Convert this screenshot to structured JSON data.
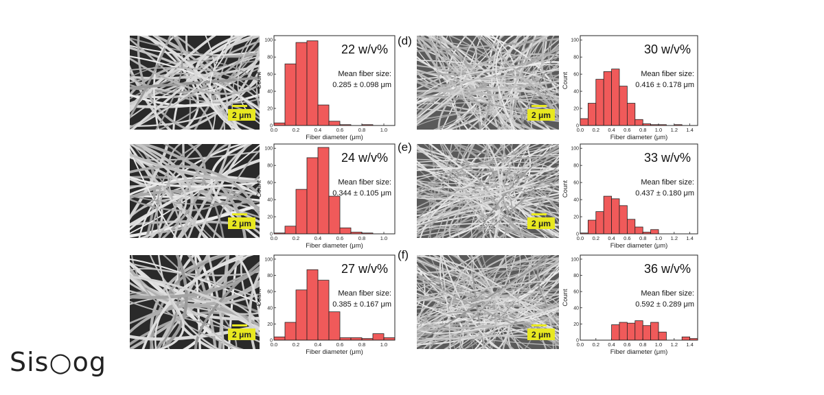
{
  "panel_letters": [
    "(d)",
    "(e)",
    "(f)"
  ],
  "scale_bar_label": "2 μm",
  "watermark": "Sis○og",
  "colors": {
    "bar_fill": "#f05a5a",
    "bar_stroke": "#222222",
    "scale_bar": "#e8e820"
  },
  "chart_data": [
    {
      "type": "bar",
      "title": "22 w/v%",
      "annotation_line1": "Mean fiber size:",
      "annotation_line2": "0.285 ± 0.098 μm",
      "xlabel": "Fiber diameter (μm)",
      "ylabel": "Count",
      "xlim": [
        0,
        1.1
      ],
      "ylim": [
        0,
        105
      ],
      "xticks": [
        "0.0",
        "0.2",
        "0.4",
        "0.6",
        "0.8",
        "1.0"
      ],
      "yticks": [
        "0",
        "20",
        "40",
        "60",
        "80",
        "100"
      ],
      "bin_width": 0.1,
      "bin_starts": [
        0.0,
        0.1,
        0.2,
        0.3,
        0.4,
        0.5,
        0.6,
        0.7,
        0.8,
        0.9,
        1.0
      ],
      "values": [
        3,
        72,
        97,
        99,
        24,
        5,
        1,
        0,
        1,
        0,
        0
      ]
    },
    {
      "type": "bar",
      "title": "24 w/v%",
      "annotation_line1": "Mean fiber size:",
      "annotation_line2": "0.344 ± 0.105 μm",
      "xlabel": "Fiber diameter (μm)",
      "ylabel": "Count",
      "xlim": [
        0,
        1.1
      ],
      "ylim": [
        0,
        105
      ],
      "xticks": [
        "0.0",
        "0.2",
        "0.4",
        "0.6",
        "0.8",
        "1.0"
      ],
      "yticks": [
        "0",
        "20",
        "40",
        "60",
        "80",
        "100"
      ],
      "bin_width": 0.1,
      "bin_starts": [
        0.0,
        0.1,
        0.2,
        0.3,
        0.4,
        0.5,
        0.6,
        0.7,
        0.8,
        0.9,
        1.0
      ],
      "values": [
        1,
        9,
        52,
        89,
        101,
        44,
        7,
        2,
        1,
        0,
        0
      ]
    },
    {
      "type": "bar",
      "title": "27 w/v%",
      "annotation_line1": "Mean fiber size:",
      "annotation_line2": "0.385 ± 0.167 μm",
      "xlabel": "Fiber diameter (μm)",
      "ylabel": "Count",
      "xlim": [
        0,
        1.1
      ],
      "ylim": [
        0,
        105
      ],
      "xticks": [
        "0.0",
        "0.2",
        "0.4",
        "0.6",
        "0.8",
        "1.0"
      ],
      "yticks": [
        "0",
        "20",
        "40",
        "60",
        "80",
        "100"
      ],
      "bin_width": 0.1,
      "bin_starts": [
        0.0,
        0.1,
        0.2,
        0.3,
        0.4,
        0.5,
        0.6,
        0.7,
        0.8,
        0.9,
        1.0
      ],
      "values": [
        4,
        22,
        62,
        87,
        74,
        35,
        3,
        3,
        2,
        8,
        3
      ]
    },
    {
      "type": "bar",
      "title": "30 w/v%",
      "annotation_line1": "Mean fiber size:",
      "annotation_line2": "0.416 ± 0.178 μm",
      "xlabel": "Fiber diameter (μm)",
      "ylabel": "Count",
      "xlim": [
        0,
        1.5
      ],
      "ylim": [
        0,
        105
      ],
      "xticks": [
        "0.0",
        "0.2",
        "0.4",
        "0.6",
        "0.8",
        "1.0",
        "1.2",
        "1.4"
      ],
      "yticks": [
        "0",
        "20",
        "40",
        "60",
        "80",
        "100"
      ],
      "bin_width": 0.1,
      "bin_starts": [
        0.0,
        0.1,
        0.2,
        0.3,
        0.4,
        0.5,
        0.6,
        0.7,
        0.8,
        0.9,
        1.0,
        1.1,
        1.2,
        1.3,
        1.4
      ],
      "values": [
        8,
        26,
        54,
        63,
        66,
        46,
        26,
        7,
        2,
        1,
        1,
        0,
        1,
        0,
        0
      ]
    },
    {
      "type": "bar",
      "title": "33 w/v%",
      "annotation_line1": "Mean fiber size:",
      "annotation_line2": "0.437 ± 0.180 μm",
      "xlabel": "Fiber diameter (μm)",
      "ylabel": "Count",
      "xlim": [
        0,
        1.5
      ],
      "ylim": [
        0,
        105
      ],
      "xticks": [
        "0.0",
        "0.2",
        "0.4",
        "0.6",
        "0.8",
        "1.0",
        "1.2",
        "1.4"
      ],
      "yticks": [
        "0",
        "20",
        "40",
        "60",
        "80",
        "100"
      ],
      "bin_width": 0.1,
      "bin_starts": [
        0.0,
        0.1,
        0.2,
        0.3,
        0.4,
        0.5,
        0.6,
        0.7,
        0.8,
        0.9,
        1.0,
        1.1,
        1.2,
        1.3,
        1.4
      ],
      "values": [
        1,
        16,
        26,
        44,
        41,
        33,
        17,
        8,
        2,
        5,
        0,
        0,
        0,
        0,
        0
      ]
    },
    {
      "type": "bar",
      "title": "36 w/v%",
      "annotation_line1": "Mean fiber size:",
      "annotation_line2": "0.592 ± 0.289 μm",
      "xlabel": "Fiber diameter (μm)",
      "ylabel": "Count",
      "xlim": [
        0,
        1.5
      ],
      "ylim": [
        0,
        105
      ],
      "xticks": [
        "0.0",
        "0.2",
        "0.4",
        "0.6",
        "0.8",
        "1.0",
        "1.2",
        "1.4"
      ],
      "yticks": [
        "0",
        "20",
        "40",
        "60",
        "80",
        "100"
      ],
      "bin_width": 0.1,
      "bin_starts": [
        0.0,
        0.1,
        0.2,
        0.3,
        0.4,
        0.5,
        0.6,
        0.7,
        0.8,
        0.9,
        1.0,
        1.1,
        1.2,
        1.3,
        1.4
      ],
      "values": [
        0,
        0,
        0,
        0,
        19,
        22,
        21,
        24,
        18,
        22,
        10,
        0,
        0,
        4,
        2
      ]
    }
  ]
}
